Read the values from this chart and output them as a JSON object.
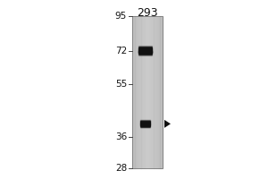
{
  "title": "293",
  "mw_markers": [
    95,
    72,
    55,
    36,
    28
  ],
  "band1_mw": 72,
  "band2_mw": 40,
  "bg_color": "#ffffff",
  "gel_color": "#cccccc",
  "band_color": "#111111",
  "arrow_color": "#111111",
  "marker_label_color": "#111111",
  "title_fontsize": 9,
  "marker_fontsize": 7.5,
  "fig_width": 3.0,
  "fig_height": 2.0,
  "dpi": 100
}
